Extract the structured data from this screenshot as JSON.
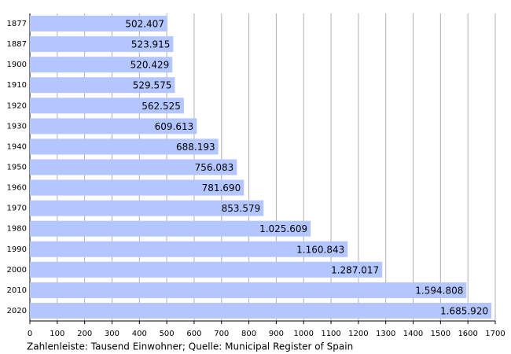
{
  "chart_data": {
    "type": "hbar",
    "categories": [
      "1877",
      "1887",
      "1900",
      "1910",
      "1920",
      "1930",
      "1940",
      "1950",
      "1960",
      "1970",
      "1980",
      "1990",
      "2000",
      "2010",
      "2020"
    ],
    "values": [
      502.407,
      523.915,
      520.429,
      529.575,
      562.525,
      609.613,
      688.193,
      756.083,
      781.69,
      853.579,
      1025.609,
      1160.843,
      1287.017,
      1594.808,
      1685.92
    ],
    "value_labels": [
      "502.407",
      "523.915",
      "520.429",
      "529.575",
      "562.525",
      "609.613",
      "688.193",
      "756.083",
      "781.690",
      "853.579",
      "1.025.609",
      "1.160.843",
      "1.287.017",
      "1.594.808",
      "1.685.920"
    ],
    "color": "#b3c6ff",
    "xlim": [
      0,
      1700
    ],
    "xticks": [
      0,
      100,
      200,
      300,
      400,
      500,
      600,
      700,
      800,
      900,
      1000,
      1100,
      1200,
      1300,
      1400,
      1500,
      1600,
      1700
    ],
    "grid": true,
    "caption": "Zahlenleiste: Tausend Einwohner; Quelle: Municipal Register of Spain"
  }
}
